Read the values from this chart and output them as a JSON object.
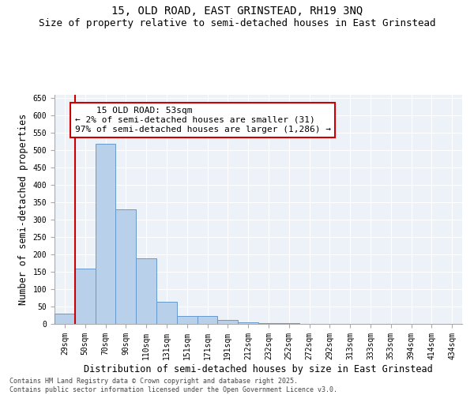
{
  "title1": "15, OLD ROAD, EAST GRINSTEAD, RH19 3NQ",
  "title2": "Size of property relative to semi-detached houses in East Grinstead",
  "xlabel": "Distribution of semi-detached houses by size in East Grinstead",
  "ylabel": "Number of semi-detached properties",
  "footnote": "Contains HM Land Registry data © Crown copyright and database right 2025.\nContains public sector information licensed under the Open Government Licence v3.0.",
  "categories": [
    "29sqm",
    "50sqm",
    "70sqm",
    "90sqm",
    "110sqm",
    "131sqm",
    "151sqm",
    "171sqm",
    "191sqm",
    "212sqm",
    "232sqm",
    "252sqm",
    "272sqm",
    "292sqm",
    "313sqm",
    "333sqm",
    "353sqm",
    "394sqm",
    "414sqm",
    "434sqm"
  ],
  "values": [
    30,
    160,
    520,
    330,
    190,
    63,
    22,
    22,
    12,
    5,
    3,
    2,
    1,
    0,
    0,
    0,
    0,
    0,
    0,
    1
  ],
  "bar_color": "#b8d0ea",
  "bar_edge_color": "#6699cc",
  "vline_x_index": 1,
  "property_label": "15 OLD ROAD: 53sqm",
  "smaller_pct": "2%",
  "smaller_n": "31",
  "larger_pct": "97%",
  "larger_n": "1,286",
  "annotation_box_color": "#cc0000",
  "vline_color": "#cc0000",
  "ylim": [
    0,
    660
  ],
  "yticks": [
    0,
    50,
    100,
    150,
    200,
    250,
    300,
    350,
    400,
    450,
    500,
    550,
    600,
    650
  ],
  "bg_color": "#edf2f9",
  "title_fontsize": 10,
  "subtitle_fontsize": 9,
  "axis_label_fontsize": 8.5,
  "tick_fontsize": 7,
  "annot_fontsize": 8
}
